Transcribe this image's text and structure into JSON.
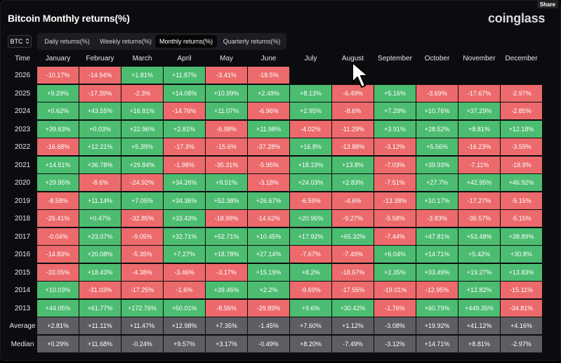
{
  "header": {
    "title": "Bitcoin Monthly returns(%)",
    "brand": "coinglass",
    "share": "Share"
  },
  "coin_select": {
    "value": "BTC"
  },
  "tabs": [
    {
      "label": "Daily returns(%)",
      "active": false
    },
    {
      "label": "Weekly returns(%)",
      "active": false
    },
    {
      "label": "Monthly returns(%)",
      "active": true
    },
    {
      "label": "Quarterly returns(%)",
      "active": false
    }
  ],
  "table": {
    "time_header": "Time",
    "months": [
      "January",
      "February",
      "March",
      "April",
      "May",
      "June",
      "July",
      "August",
      "September",
      "October",
      "November",
      "December"
    ],
    "rows": [
      {
        "label": "2026",
        "values": [
          "-10.17%",
          "-14.94%",
          "+1.81%",
          "+11.87%",
          "-3.41%",
          "-18.5%"
        ]
      },
      {
        "label": "2025",
        "values": [
          "+9.29%",
          "-17.39%",
          "-2.3%",
          "+14.08%",
          "+10.99%",
          "+2.49%",
          "+8.13%",
          "-6.49%",
          "+5.16%",
          "-3.69%",
          "-17.67%",
          "-2.97%"
        ]
      },
      {
        "label": "2024",
        "values": [
          "+0.62%",
          "+43.55%",
          "+16.81%",
          "-14.76%",
          "+11.07%",
          "-6.96%",
          "+2.95%",
          "-8.6%",
          "+7.29%",
          "+10.76%",
          "+37.29%",
          "-2.85%"
        ]
      },
      {
        "label": "2023",
        "values": [
          "+39.63%",
          "+0.03%",
          "+22.96%",
          "+2.81%",
          "-6.98%",
          "+11.98%",
          "-4.02%",
          "-11.29%",
          "+3.91%",
          "+28.52%",
          "+8.81%",
          "+12.18%"
        ]
      },
      {
        "label": "2022",
        "values": [
          "-16.68%",
          "+12.21%",
          "+5.39%",
          "-17.3%",
          "-15.6%",
          "-37.28%",
          "+16.8%",
          "-13.88%",
          "-3.12%",
          "+5.56%",
          "-16.23%",
          "-3.59%"
        ]
      },
      {
        "label": "2021",
        "values": [
          "+14.51%",
          "+36.78%",
          "+29.84%",
          "-1.98%",
          "-35.31%",
          "-5.95%",
          "+18.19%",
          "+13.8%",
          "-7.03%",
          "+39.93%",
          "-7.11%",
          "-18.9%"
        ]
      },
      {
        "label": "2020",
        "values": [
          "+29.95%",
          "-8.6%",
          "-24.92%",
          "+34.26%",
          "+9.51%",
          "-3.18%",
          "+24.03%",
          "+2.83%",
          "-7.51%",
          "+27.7%",
          "+42.95%",
          "+46.92%"
        ]
      },
      {
        "label": "2019",
        "values": [
          "-8.58%",
          "+11.14%",
          "+7.05%",
          "+34.36%",
          "+52.38%",
          "+26.67%",
          "-6.59%",
          "-4.6%",
          "-13.38%",
          "+10.17%",
          "-17.27%",
          "-5.15%"
        ]
      },
      {
        "label": "2018",
        "values": [
          "-25.41%",
          "+0.47%",
          "-32.85%",
          "+33.43%",
          "-18.99%",
          "-14.62%",
          "+20.96%",
          "-9.27%",
          "-5.58%",
          "-3.83%",
          "-36.57%",
          "-5.15%"
        ]
      },
      {
        "label": "2017",
        "values": [
          "-0.04%",
          "+23.07%",
          "-9.05%",
          "+32.71%",
          "+52.71%",
          "+10.45%",
          "+17.92%",
          "+65.32%",
          "-7.44%",
          "+47.81%",
          "+53.48%",
          "+38.89%"
        ]
      },
      {
        "label": "2016",
        "values": [
          "-14.83%",
          "+20.08%",
          "-5.35%",
          "+7.27%",
          "+18.78%",
          "+27.14%",
          "-7.67%",
          "-7.49%",
          "+6.04%",
          "+14.71%",
          "+5.42%",
          "+30.8%"
        ]
      },
      {
        "label": "2015",
        "values": [
          "-33.05%",
          "+18.43%",
          "-4.38%",
          "-3.46%",
          "-3.17%",
          "+15.19%",
          "+8.2%",
          "-18.67%",
          "+2.35%",
          "+33.49%",
          "+19.27%",
          "+13.83%"
        ]
      },
      {
        "label": "2014",
        "values": [
          "+10.03%",
          "-31.03%",
          "-17.25%",
          "-1.6%",
          "+39.46%",
          "+2.2%",
          "-9.69%",
          "-17.55%",
          "-19.01%",
          "-12.95%",
          "+12.82%",
          "-15.11%"
        ]
      },
      {
        "label": "2013",
        "values": [
          "+44.05%",
          "+61.77%",
          "+172.76%",
          "+50.01%",
          "-8.56%",
          "-29.89%",
          "+9.6%",
          "+30.42%",
          "-1.76%",
          "+60.79%",
          "+449.35%",
          "-34.81%"
        ]
      }
    ],
    "stats": [
      {
        "label": "Average",
        "values": [
          "+2.81%",
          "+11.11%",
          "+11.47%",
          "+12.98%",
          "+7.35%",
          "-1.45%",
          "+7.60%",
          "+1.12%",
          "-3.08%",
          "+19.92%",
          "+41.12%",
          "+4.16%"
        ]
      },
      {
        "label": "Median",
        "values": [
          "+0.29%",
          "+11.68%",
          "-0.24%",
          "+9.57%",
          "+3.17%",
          "-0.49%",
          "+8.20%",
          "-7.49%",
          "-3.12%",
          "+14.71%",
          "+8.81%",
          "-2.97%"
        ]
      }
    ]
  },
  "colors": {
    "positive": "#4cbc71",
    "negative": "#ec6a6b",
    "stat": "#5d5e63",
    "background": "#0b0c0f"
  },
  "icons": {
    "select": "chevron-up-down-icon",
    "cursor": "mouse-pointer-icon"
  }
}
